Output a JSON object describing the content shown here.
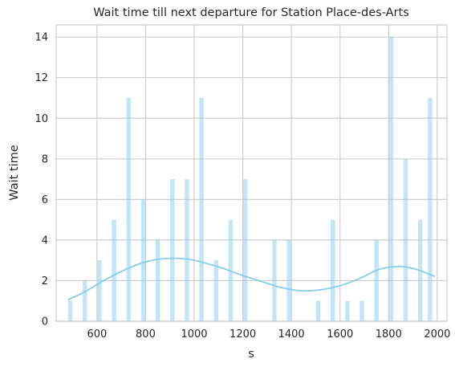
{
  "chart_data": {
    "type": "bar",
    "title": "Wait time till next departure for Station Place-des-Arts",
    "xlabel": "s",
    "ylabel": "Wait time",
    "xlim": [
      432,
      2040
    ],
    "ylim": [
      0,
      14.6
    ],
    "xticks": [
      "600",
      "800",
      "1000",
      "1200",
      "1400",
      "1600",
      "1800",
      "2000"
    ],
    "yticks": [
      "0",
      "2",
      "4",
      "6",
      "8",
      "10",
      "12",
      "14"
    ],
    "grid": true,
    "bin_width": 18,
    "series": [
      {
        "kind": "histogram",
        "color": "#87ceeb",
        "bins": [
          {
            "x": 490,
            "value": 1
          },
          {
            "x": 550,
            "value": 2
          },
          {
            "x": 610,
            "value": 3
          },
          {
            "x": 670,
            "value": 5
          },
          {
            "x": 730,
            "value": 11
          },
          {
            "x": 790,
            "value": 6
          },
          {
            "x": 850,
            "value": 4
          },
          {
            "x": 910,
            "value": 7
          },
          {
            "x": 970,
            "value": 7
          },
          {
            "x": 1030,
            "value": 11
          },
          {
            "x": 1090,
            "value": 3
          },
          {
            "x": 1150,
            "value": 5
          },
          {
            "x": 1210,
            "value": 7
          },
          {
            "x": 1330,
            "value": 4
          },
          {
            "x": 1390,
            "value": 4
          },
          {
            "x": 1510,
            "value": 1
          },
          {
            "x": 1570,
            "value": 5
          },
          {
            "x": 1630,
            "value": 1
          },
          {
            "x": 1690,
            "value": 1
          },
          {
            "x": 1750,
            "value": 4
          },
          {
            "x": 1810,
            "value": 14
          },
          {
            "x": 1870,
            "value": 8
          },
          {
            "x": 1930,
            "value": 5
          },
          {
            "x": 1970,
            "value": 11
          }
        ]
      },
      {
        "kind": "kde",
        "color": "#87ceeb",
        "x": [
          480,
          550,
          620,
          700,
          780,
          850,
          910,
          980,
          1050,
          1120,
          1200,
          1280,
          1360,
          1440,
          1520,
          1600,
          1680,
          1760,
          1840,
          1900,
          1960,
          1990
        ],
        "y": [
          1.05,
          1.45,
          1.95,
          2.45,
          2.85,
          3.05,
          3.1,
          3.05,
          2.85,
          2.6,
          2.25,
          1.95,
          1.65,
          1.5,
          1.55,
          1.75,
          2.1,
          2.55,
          2.7,
          2.6,
          2.35,
          2.2
        ]
      }
    ]
  }
}
